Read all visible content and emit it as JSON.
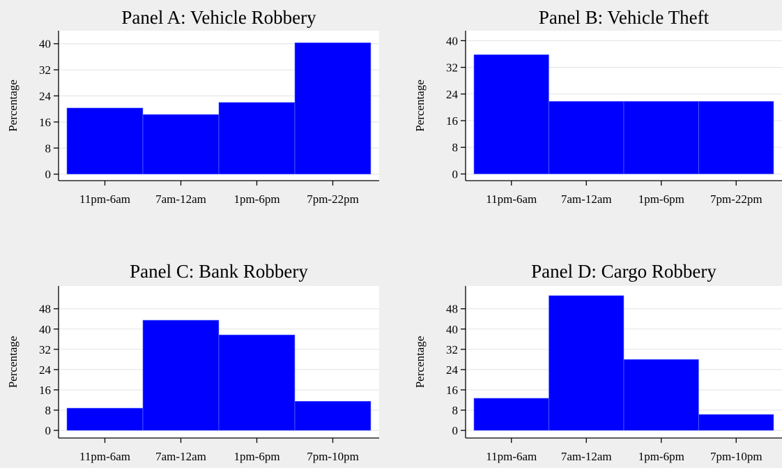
{
  "chart_data": [
    {
      "type": "bar",
      "title": "Panel A: Vehicle Robbery",
      "ylabel": "Percentage",
      "xlabel": "",
      "categories": [
        "11pm-6am",
        "7am-12am",
        "1pm-6pm",
        "7pm-22pm"
      ],
      "values": [
        20.3,
        18.3,
        22.0,
        40.3
      ],
      "yticks": [
        0,
        8,
        16,
        24,
        32,
        40
      ],
      "ylim": [
        -2,
        44
      ],
      "bar_color": "#0000ff",
      "grid": true
    },
    {
      "type": "bar",
      "title": "Panel B: Vehicle Theft",
      "ylabel": "Percentage",
      "xlabel": "",
      "categories": [
        "11pm-6am",
        "7am-12am",
        "1pm-6pm",
        "7pm-22pm"
      ],
      "values": [
        35.8,
        21.8,
        21.8,
        21.8
      ],
      "yticks": [
        0,
        8,
        16,
        24,
        32,
        40
      ],
      "ylim": [
        -2,
        43
      ],
      "bar_color": "#0000ff",
      "grid": true
    },
    {
      "type": "bar",
      "title": "Panel C: Bank Robbery",
      "ylabel": "Percentage",
      "xlabel": "",
      "categories": [
        "11pm-6am",
        "7am-12am",
        "1pm-6pm",
        "7pm-10pm"
      ],
      "values": [
        8.8,
        43.5,
        37.7,
        11.5
      ],
      "yticks": [
        0,
        8,
        16,
        24,
        32,
        40,
        48
      ],
      "ylim": [
        -3,
        57
      ],
      "bar_color": "#0000ff",
      "grid": true
    },
    {
      "type": "bar",
      "title": "Panel D: Cargo Robbery",
      "ylabel": "Percentage",
      "xlabel": "",
      "categories": [
        "11pm-6am",
        "7am-12am",
        "1pm-6pm",
        "7pm-10pm"
      ],
      "values": [
        12.7,
        53.2,
        28.0,
        6.3
      ],
      "yticks": [
        0,
        8,
        16,
        24,
        32,
        40,
        48
      ],
      "ylim": [
        -3,
        57
      ],
      "bar_color": "#0000ff",
      "grid": true
    }
  ]
}
